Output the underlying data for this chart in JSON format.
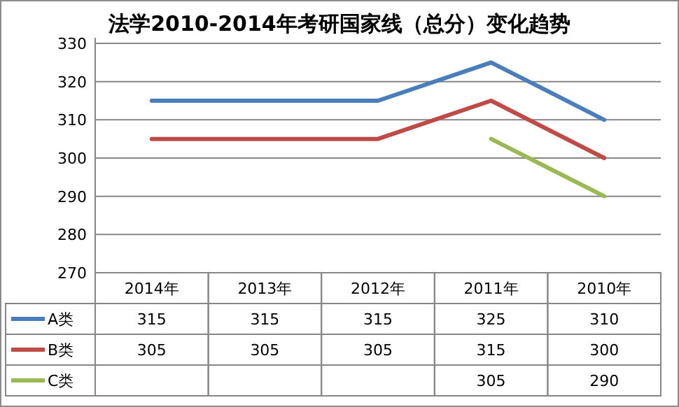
{
  "chart_data": {
    "type": "line",
    "title": "法学2010-2014年考研国家线（总分）变化趋势",
    "categories": [
      "2014年",
      "2013年",
      "2012年",
      "2011年",
      "2010年"
    ],
    "series": [
      {
        "name": "A类",
        "color": "#4a7ebb",
        "values": [
          315,
          315,
          315,
          325,
          310
        ]
      },
      {
        "name": "B类",
        "color": "#be4b48",
        "values": [
          305,
          305,
          305,
          315,
          300
        ]
      },
      {
        "name": "C类",
        "color": "#98b954",
        "values": [
          null,
          null,
          null,
          305,
          290
        ]
      }
    ],
    "ylim": [
      270,
      330
    ],
    "yticks": [
      270,
      280,
      290,
      300,
      310,
      320,
      330
    ],
    "grid": "y",
    "legend": "bottom",
    "data_labels": true,
    "marker": "none",
    "line_style": "solid"
  }
}
